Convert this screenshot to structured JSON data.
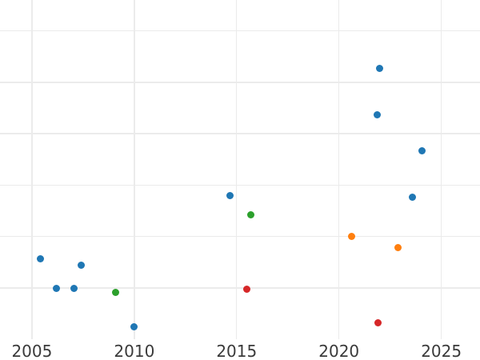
{
  "chart_data": {
    "type": "scatter",
    "title": "",
    "xlabel": "",
    "ylabel": "",
    "grid": true,
    "legend_position": "none",
    "x_ticks": [
      2005,
      2010,
      2015,
      2020,
      2025
    ],
    "x_tick_labels": [
      "2005",
      "2010",
      "2015",
      "2020",
      "2025"
    ],
    "xlim": [
      2003.44,
      2026.89
    ],
    "ylim_units": [
      -0.4,
      6.6
    ],
    "y_gridline_units": [
      1,
      2,
      3,
      4,
      5,
      6
    ],
    "y_axis_note": "y-axis tick labels are cropped outside the visible image; y values given in gridline units above the bottom axis line",
    "axis_baseline_unit": 0,
    "colors": {
      "gridline": "#ebebeb",
      "tick_label": "#3a3a3a",
      "background": "#ffffff"
    },
    "series": [
      {
        "name": "blue",
        "color": "#1f77b4",
        "points": [
          {
            "x": 2005.43,
            "y": 1.57
          },
          {
            "x": 2006.21,
            "y": 1.0
          },
          {
            "x": 2007.07,
            "y": 1.0
          },
          {
            "x": 2007.42,
            "y": 1.45
          },
          {
            "x": 2010.0,
            "y": 0.24
          },
          {
            "x": 2014.69,
            "y": 2.8
          },
          {
            "x": 2021.85,
            "y": 4.37
          },
          {
            "x": 2022.0,
            "y": 5.27
          },
          {
            "x": 2023.6,
            "y": 2.77
          },
          {
            "x": 2024.04,
            "y": 3.67
          }
        ]
      },
      {
        "name": "green",
        "color": "#2ca02c",
        "points": [
          {
            "x": 2009.1,
            "y": 0.92
          },
          {
            "x": 2015.71,
            "y": 2.43
          }
        ]
      },
      {
        "name": "orange",
        "color": "#ff7f0e",
        "points": [
          {
            "x": 2020.6,
            "y": 2.01
          },
          {
            "x": 2022.9,
            "y": 1.79
          }
        ]
      },
      {
        "name": "red",
        "color": "#d62728",
        "points": [
          {
            "x": 2015.51,
            "y": 0.97
          },
          {
            "x": 2021.89,
            "y": 0.32
          }
        ]
      }
    ]
  }
}
